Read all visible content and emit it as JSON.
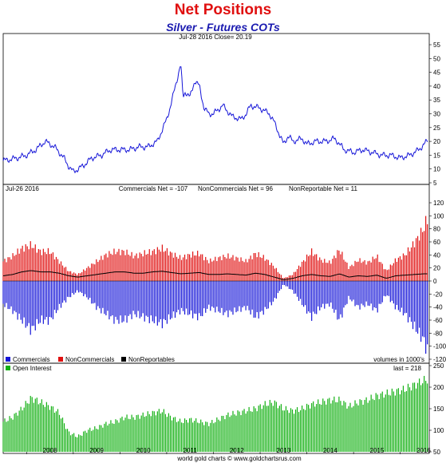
{
  "title": "Net Positions",
  "subtitle": "Silver - Futures COTs",
  "footer": "world gold charts © www.goldchartsrus.com",
  "chart_data": [
    {
      "type": "line",
      "name": "price-panel",
      "header": "Jul-28  2016   Close= 20.19",
      "x": [
        2007.5,
        2007.8,
        2008.0,
        2008.2,
        2008.4,
        2008.6,
        2008.8,
        2008.9,
        2009.0,
        2009.2,
        2009.4,
        2009.6,
        2009.8,
        2010.0,
        2010.2,
        2010.4,
        2010.6,
        2010.8,
        2010.9,
        2011.0,
        2011.1,
        2011.2,
        2011.3,
        2011.35,
        2011.4,
        2011.5,
        2011.6,
        2011.7,
        2011.8,
        2011.9,
        2012.0,
        2012.2,
        2012.4,
        2012.6,
        2012.7,
        2012.8,
        2013.0,
        2013.1,
        2013.2,
        2013.3,
        2013.4,
        2013.5,
        2013.6,
        2013.7,
        2013.9,
        2014.0,
        2014.2,
        2014.4,
        2014.6,
        2014.8,
        2015.0,
        2015.2,
        2015.4,
        2015.6,
        2015.8,
        2016.0,
        2016.2,
        2016.4,
        2016.58
      ],
      "values": [
        13,
        14,
        15,
        17,
        20,
        18,
        14,
        11,
        9,
        11,
        14,
        15,
        17,
        17,
        17,
        18,
        18,
        20,
        24,
        28,
        34,
        41,
        48,
        36,
        38,
        36,
        42,
        40,
        32,
        30,
        30,
        33,
        29,
        28,
        30,
        33,
        32,
        31,
        30,
        27,
        23,
        19,
        22,
        20,
        21,
        19,
        20,
        20,
        21,
        17,
        16,
        17,
        16,
        15,
        15,
        14,
        15,
        17,
        20.19
      ],
      "ylim": [
        5,
        55
      ],
      "yticks": [
        5,
        10,
        15,
        20,
        25,
        30,
        35,
        40,
        45,
        50,
        55
      ]
    },
    {
      "type": "bar",
      "name": "net-positions-panel",
      "header_left": "Jul-26  2016",
      "header_labels": [
        "Commercials Net = -107",
        "NonCommercials Net = 96",
        "NonReportable Net = 11"
      ],
      "x": [
        2007.5,
        2007.7,
        2007.9,
        2008.1,
        2008.3,
        2008.5,
        2008.7,
        2008.9,
        2009.1,
        2009.3,
        2009.5,
        2009.7,
        2009.9,
        2010.1,
        2010.3,
        2010.5,
        2010.7,
        2010.9,
        2011.1,
        2011.3,
        2011.5,
        2011.7,
        2011.9,
        2012.1,
        2012.3,
        2012.5,
        2012.7,
        2012.9,
        2013.1,
        2013.3,
        2013.5,
        2013.7,
        2013.9,
        2014.1,
        2014.3,
        2014.5,
        2014.7,
        2014.9,
        2015.1,
        2015.3,
        2015.5,
        2015.7,
        2015.9,
        2016.1,
        2016.3,
        2016.5,
        2016.58
      ],
      "series": [
        {
          "name": "Commercials",
          "color": "#1515d8",
          "values": [
            -35,
            -45,
            -60,
            -75,
            -60,
            -60,
            -40,
            -25,
            -15,
            -25,
            -40,
            -50,
            -60,
            -60,
            -50,
            -55,
            -60,
            -65,
            -55,
            -45,
            -50,
            -55,
            -40,
            -45,
            -50,
            -45,
            -40,
            -55,
            -45,
            -30,
            -5,
            -15,
            -35,
            -55,
            -40,
            -35,
            -60,
            -25,
            -40,
            -35,
            -45,
            -20,
            -40,
            -50,
            -70,
            -90,
            -107
          ]
        },
        {
          "name": "NonCommercials",
          "color": "#e01010",
          "values": [
            30,
            38,
            50,
            55,
            45,
            45,
            30,
            15,
            10,
            20,
            30,
            40,
            45,
            45,
            38,
            42,
            45,
            50,
            42,
            35,
            40,
            42,
            30,
            35,
            38,
            35,
            30,
            42,
            35,
            22,
            4,
            10,
            28,
            45,
            32,
            28,
            48,
            20,
            32,
            28,
            38,
            15,
            32,
            40,
            58,
            80,
            96
          ]
        },
        {
          "name": "NonReportables",
          "color": "#000000",
          "values": [
            8,
            10,
            14,
            16,
            14,
            14,
            12,
            8,
            6,
            8,
            10,
            12,
            14,
            14,
            12,
            12,
            14,
            15,
            13,
            11,
            12,
            13,
            10,
            10,
            11,
            10,
            9,
            12,
            10,
            6,
            2,
            4,
            8,
            10,
            8,
            7,
            11,
            6,
            8,
            7,
            9,
            4,
            8,
            9,
            10,
            11,
            11
          ]
        }
      ],
      "ylim": [
        -120,
        120
      ],
      "yticks": [
        -120,
        -100,
        -80,
        -60,
        -40,
        -20,
        0,
        20,
        40,
        60,
        80,
        100,
        120
      ],
      "note": "volumes in 1000's"
    },
    {
      "type": "bar",
      "name": "open-interest-panel",
      "series_name": "Open Interest",
      "color": "#12b012",
      "last_label": "last = 218",
      "x": [
        2007.5,
        2007.7,
        2007.9,
        2008.1,
        2008.3,
        2008.5,
        2008.7,
        2008.9,
        2009.1,
        2009.3,
        2009.5,
        2009.7,
        2009.9,
        2010.1,
        2010.3,
        2010.5,
        2010.7,
        2010.9,
        2011.1,
        2011.3,
        2011.5,
        2011.7,
        2011.9,
        2012.1,
        2012.3,
        2012.5,
        2012.7,
        2012.9,
        2013.1,
        2013.3,
        2013.5,
        2013.7,
        2013.9,
        2014.1,
        2014.3,
        2014.5,
        2014.7,
        2014.9,
        2015.1,
        2015.3,
        2015.5,
        2015.7,
        2015.9,
        2016.1,
        2016.3,
        2016.5,
        2016.58
      ],
      "values": [
        120,
        130,
        150,
        175,
        165,
        155,
        140,
        95,
        85,
        100,
        105,
        115,
        120,
        130,
        130,
        135,
        140,
        145,
        130,
        120,
        125,
        120,
        115,
        125,
        135,
        140,
        145,
        150,
        160,
        165,
        150,
        145,
        150,
        160,
        165,
        170,
        170,
        155,
        165,
        170,
        180,
        185,
        190,
        195,
        205,
        215,
        218
      ],
      "ylim": [
        50,
        250
      ],
      "yticks": [
        50,
        100,
        150,
        200,
        250
      ]
    }
  ],
  "x_axis": {
    "ticks": [
      "2008",
      "2009",
      "2010",
      "2011",
      "2012",
      "2013",
      "2014",
      "2015",
      "2016"
    ],
    "range": [
      2007.5,
      2016.62
    ]
  },
  "legend": [
    {
      "label": "Commercials",
      "color": "#1515d8"
    },
    {
      "label": "NonCommercials",
      "color": "#e01010"
    },
    {
      "label": "NonReportables",
      "color": "#000000"
    }
  ]
}
